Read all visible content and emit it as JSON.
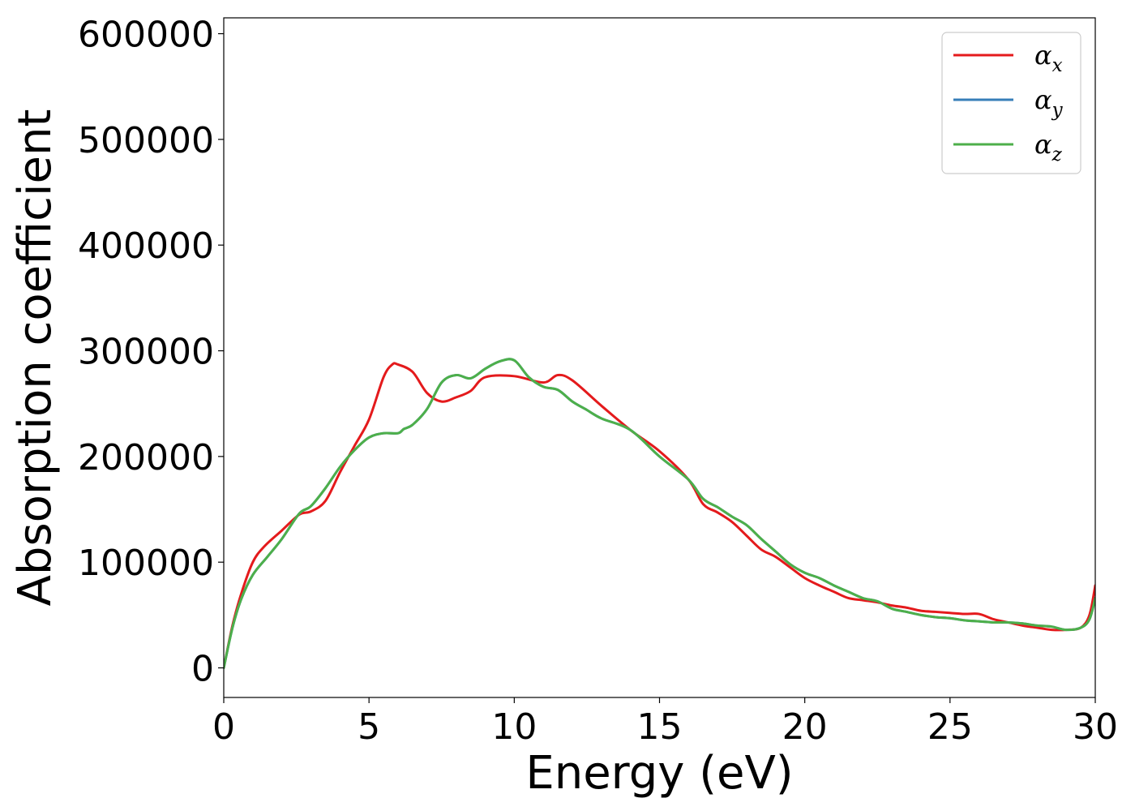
{
  "chart_data": {
    "type": "line",
    "xlabel": "Energy (eV)",
    "ylabel": "Absorption coefficient",
    "xlim": [
      0,
      30
    ],
    "ylim": [
      -28000,
      615000
    ],
    "xticks": [
      0,
      5,
      10,
      15,
      20,
      25,
      30
    ],
    "yticks": [
      0,
      100000,
      200000,
      300000,
      400000,
      500000,
      600000
    ],
    "grid": false,
    "legend_position": "top-right",
    "series": [
      {
        "name": "α",
        "subscript": "x",
        "color": "#e41a1c",
        "x": [
          0,
          0.3,
          0.6,
          1.0,
          1.4,
          2.0,
          2.6,
          3.0,
          3.5,
          4.0,
          4.5,
          5.0,
          5.5,
          5.8,
          6.0,
          6.5,
          7.0,
          7.5,
          8.0,
          8.5,
          9.0,
          10.0,
          11.0,
          11.5,
          12.0,
          13.0,
          14.0,
          15.0,
          16.0,
          16.5,
          17.0,
          17.5,
          18.0,
          18.5,
          19.0,
          19.5,
          20.0,
          20.5,
          21.0,
          21.5,
          22.0,
          22.5,
          23.0,
          23.5,
          24.0,
          24.5,
          25.0,
          25.5,
          26.0,
          26.5,
          27.0,
          27.5,
          28.0,
          28.5,
          29.0,
          29.5,
          29.8,
          30.0
        ],
        "y": [
          0,
          40000,
          70000,
          100000,
          115000,
          130000,
          145000,
          148000,
          158000,
          185000,
          210000,
          235000,
          275000,
          287000,
          287000,
          280000,
          260000,
          252000,
          256000,
          262000,
          275000,
          276000,
          270000,
          277000,
          272000,
          248000,
          225000,
          205000,
          178000,
          155000,
          147000,
          138000,
          125000,
          112000,
          105000,
          95000,
          85000,
          78000,
          72000,
          66000,
          64000,
          62000,
          59000,
          57000,
          54000,
          53000,
          52000,
          51000,
          51000,
          46000,
          43000,
          40000,
          38000,
          36000,
          36000,
          38000,
          50000,
          78000
        ]
      },
      {
        "name": "α",
        "subscript": "y",
        "color": "#377eb8",
        "x": [
          0,
          0.3,
          0.6,
          1.0,
          1.5,
          2.0,
          2.6,
          3.0,
          3.5,
          4.0,
          4.5,
          5.0,
          5.5,
          6.0,
          6.2,
          6.5,
          7.0,
          7.5,
          8.0,
          8.5,
          9.0,
          9.5,
          10.0,
          10.5,
          11.0,
          11.5,
          12.0,
          12.5,
          13.0,
          14.0,
          15.0,
          16.0,
          16.5,
          17.0,
          17.5,
          18.0,
          18.5,
          19.0,
          19.5,
          20.0,
          20.5,
          21.0,
          21.5,
          22.0,
          22.5,
          23.0,
          23.5,
          24.0,
          24.5,
          25.0,
          25.5,
          26.0,
          26.5,
          27.0,
          27.5,
          28.0,
          28.5,
          29.0,
          29.5,
          29.8,
          30.0
        ],
        "y": [
          0,
          38000,
          65000,
          88000,
          105000,
          122000,
          146000,
          153000,
          170000,
          190000,
          206000,
          218000,
          222000,
          222000,
          226000,
          230000,
          245000,
          270000,
          277000,
          274000,
          283000,
          290000,
          291000,
          275000,
          266000,
          263000,
          252000,
          244000,
          236000,
          225000,
          200000,
          178000,
          160000,
          152000,
          143000,
          135000,
          122000,
          110000,
          98000,
          90000,
          85000,
          78000,
          72000,
          66000,
          63000,
          56000,
          53000,
          50000,
          48000,
          47000,
          45000,
          44000,
          43000,
          43000,
          42000,
          40000,
          39000,
          36000,
          38000,
          46000,
          66000
        ]
      },
      {
        "name": "α",
        "subscript": "z",
        "color": "#4daf4a",
        "x": [
          0,
          0.3,
          0.6,
          1.0,
          1.5,
          2.0,
          2.6,
          3.0,
          3.5,
          4.0,
          4.5,
          5.0,
          5.5,
          6.0,
          6.2,
          6.5,
          7.0,
          7.5,
          8.0,
          8.5,
          9.0,
          9.5,
          10.0,
          10.5,
          11.0,
          11.5,
          12.0,
          12.5,
          13.0,
          14.0,
          15.0,
          16.0,
          16.5,
          17.0,
          17.5,
          18.0,
          18.5,
          19.0,
          19.5,
          20.0,
          20.5,
          21.0,
          21.5,
          22.0,
          22.5,
          23.0,
          23.5,
          24.0,
          24.5,
          25.0,
          25.5,
          26.0,
          26.5,
          27.0,
          27.5,
          28.0,
          28.5,
          29.0,
          29.5,
          29.8,
          30.0
        ],
        "y": [
          0,
          38000,
          65000,
          88000,
          105000,
          122000,
          146000,
          153000,
          170000,
          190000,
          206000,
          218000,
          222000,
          222000,
          226000,
          230000,
          245000,
          270000,
          277000,
          274000,
          283000,
          290000,
          291000,
          275000,
          266000,
          263000,
          252000,
          244000,
          236000,
          225000,
          200000,
          178000,
          160000,
          152000,
          143000,
          135000,
          122000,
          110000,
          98000,
          90000,
          85000,
          78000,
          72000,
          66000,
          63000,
          56000,
          53000,
          50000,
          48000,
          47000,
          45000,
          44000,
          43000,
          43000,
          42000,
          40000,
          39000,
          36000,
          38000,
          46000,
          66000
        ]
      }
    ]
  }
}
